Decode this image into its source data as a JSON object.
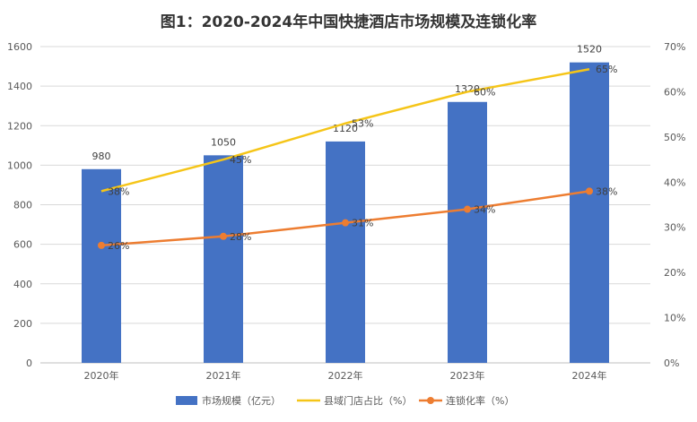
{
  "title": "图1：2020-2024年中国快捷酒店市场规模及连锁化率",
  "colors": {
    "bar": "#4472C4",
    "county_line": "#F5C518",
    "chain_line": "#ED7D31",
    "grid": "#D9D9D9",
    "axis_text": "#595959"
  },
  "chart_data": {
    "type": "bar",
    "categories": [
      "2020年",
      "2021年",
      "2022年",
      "2023年",
      "2024年"
    ],
    "series": [
      {
        "name": "市场规模（亿元）",
        "type": "bar",
        "axis": "left",
        "values": [
          980,
          1050,
          1120,
          1320,
          1520
        ],
        "labels": [
          "980",
          "1050",
          "1120",
          "1320",
          "1520"
        ]
      },
      {
        "name": "县域门店占比（%）",
        "type": "line",
        "axis": "right",
        "values": [
          38,
          45,
          53,
          60,
          65
        ],
        "labels": [
          "38%",
          "45%",
          "53%",
          "60%",
          "65%"
        ]
      },
      {
        "name": "连锁化率（%）",
        "type": "line",
        "axis": "right",
        "marker": "circle",
        "values": [
          26,
          28,
          31,
          34,
          38
        ],
        "labels": [
          "26%",
          "28%",
          "31%",
          "34%",
          "38%"
        ]
      }
    ],
    "ylim_left": [
      0,
      1600
    ],
    "ylim_right": [
      0,
      70
    ],
    "left_ticks": [
      "0",
      "200",
      "400",
      "600",
      "800",
      "1000",
      "1200",
      "1400",
      "1600"
    ],
    "right_ticks": [
      "0%",
      "10%",
      "20%",
      "30%",
      "40%",
      "50%",
      "60%",
      "70%"
    ],
    "grid": true,
    "legend_position": "bottom"
  }
}
